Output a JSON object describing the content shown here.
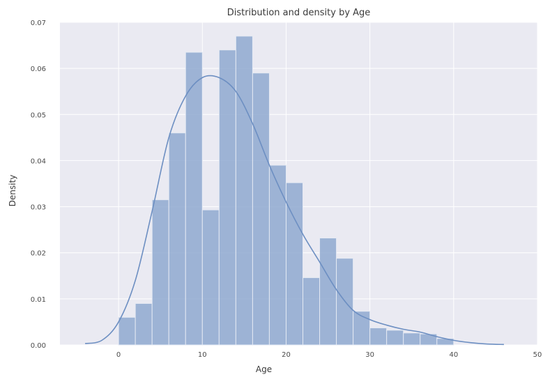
{
  "chart_data": {
    "type": "bar",
    "title": "Distribution and density by Age",
    "xlabel": "Age",
    "ylabel": "Density",
    "xlim": [
      -7,
      50
    ],
    "ylim": [
      0,
      0.07
    ],
    "x_ticks": [
      0,
      10,
      20,
      30,
      40,
      50
    ],
    "x_tick_labels": [
      "0",
      "10",
      "20",
      "30",
      "40",
      "50"
    ],
    "y_ticks": [
      0.0,
      0.01,
      0.02,
      0.03,
      0.04,
      0.05,
      0.06,
      0.07
    ],
    "y_tick_labels": [
      "0.00",
      "0.01",
      "0.02",
      "0.03",
      "0.04",
      "0.05",
      "0.06",
      "0.07"
    ],
    "grid": true,
    "background": "#eaeaf2",
    "bar_color": "#8fa9d0",
    "line_color": "#6d8fc2",
    "histogram": {
      "bin_edges": [
        0,
        2,
        4,
        6,
        8,
        10,
        12,
        14,
        16,
        18,
        20,
        22,
        24,
        26,
        28,
        30,
        32,
        34,
        36,
        38,
        40
      ],
      "values": [
        0.006,
        0.009,
        0.0315,
        0.046,
        0.0635,
        0.0293,
        0.064,
        0.067,
        0.059,
        0.039,
        0.0352,
        0.0146,
        0.0232,
        0.0188,
        0.0073,
        0.0037,
        0.0032,
        0.0026,
        0.0024,
        0.0014
      ]
    },
    "kde": {
      "x": [
        -4,
        -2,
        0,
        2,
        4,
        6,
        8,
        10,
        12,
        14,
        16,
        18,
        20,
        22,
        24,
        26,
        28,
        30,
        32,
        34,
        36,
        38,
        40,
        42,
        44,
        46
      ],
      "y": [
        0.0003,
        0.001,
        0.005,
        0.014,
        0.029,
        0.045,
        0.054,
        0.058,
        0.058,
        0.055,
        0.048,
        0.039,
        0.031,
        0.024,
        0.018,
        0.012,
        0.0075,
        0.0055,
        0.0043,
        0.0034,
        0.0028,
        0.0018,
        0.001,
        0.0005,
        0.0002,
        0.0001
      ]
    }
  }
}
